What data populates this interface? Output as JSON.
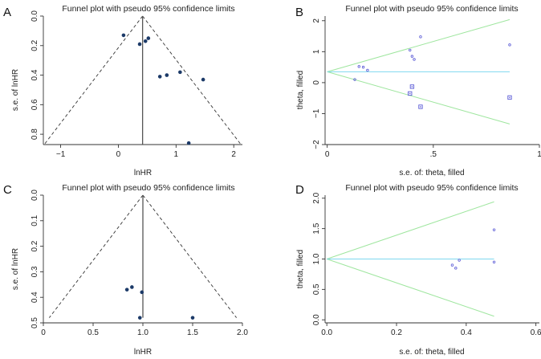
{
  "colors": {
    "point": "#1c3a68",
    "funnel_dash": "#333333",
    "center_line": "#555555",
    "pseudo_limits": "#9fe69f",
    "filled_line": "#7fd8ef",
    "filled_marker": "#5b5bd6",
    "axis": "#333333"
  },
  "chart_data": [
    {
      "panel": "A",
      "type": "scatter",
      "variant": "funnel",
      "title": "Funnel plot with pseudo 95% confidence limits",
      "xlabel": "lnHR",
      "ylabel": "s.e. of lnHR",
      "xlim": [
        -1.3,
        2.15
      ],
      "ylim": [
        0.0,
        0.87
      ],
      "y_reversed": true,
      "xticks": [
        -1,
        0,
        1,
        2
      ],
      "xtick_labels": [
        "−1",
        "0",
        "1",
        "2"
      ],
      "yticks": [
        0,
        0.2,
        0.4,
        0.6,
        0.8
      ],
      "ytick_labels": [
        "0.0",
        "0.2",
        "0.4",
        "0.6",
        "0.8"
      ],
      "pooled_estimate": 0.42,
      "funnel_max_se": 0.87,
      "points": [
        {
          "x": 0.09,
          "y": 0.13
        },
        {
          "x": 0.37,
          "y": 0.19
        },
        {
          "x": 0.47,
          "y": 0.17
        },
        {
          "x": 0.52,
          "y": 0.15
        },
        {
          "x": 0.72,
          "y": 0.41
        },
        {
          "x": 0.84,
          "y": 0.4
        },
        {
          "x": 1.07,
          "y": 0.38
        },
        {
          "x": 1.47,
          "y": 0.43
        },
        {
          "x": 1.22,
          "y": 0.86
        }
      ]
    },
    {
      "panel": "B",
      "type": "scatter",
      "variant": "filled",
      "title": "Funnel plot with pseudo 95% confidence limits",
      "xlabel": "s.e. of: theta, filled",
      "ylabel": "theta, filled",
      "xlim": [
        -0.01,
        1.0
      ],
      "ylim": [
        -2.0,
        2.15
      ],
      "xticks": [
        0,
        0.5,
        1
      ],
      "xtick_labels": [
        "0",
        ".5",
        "1"
      ],
      "yticks": [
        -2,
        -1,
        0,
        1,
        2
      ],
      "ytick_labels": [
        "−2",
        "−1",
        "0",
        "1",
        "2"
      ],
      "pooled_estimate": 0.35,
      "limit_x_max": 0.86,
      "observed": [
        {
          "x": 0.13,
          "y": 0.1
        },
        {
          "x": 0.15,
          "y": 0.52
        },
        {
          "x": 0.17,
          "y": 0.5
        },
        {
          "x": 0.19,
          "y": 0.4
        },
        {
          "x": 0.39,
          "y": 1.05
        },
        {
          "x": 0.4,
          "y": 0.85
        },
        {
          "x": 0.41,
          "y": 0.75
        },
        {
          "x": 0.44,
          "y": 1.48
        },
        {
          "x": 0.86,
          "y": 1.22
        }
      ],
      "filled": [
        {
          "x": 0.39,
          "y": -0.35
        },
        {
          "x": 0.4,
          "y": -0.13
        },
        {
          "x": 0.44,
          "y": -0.78
        },
        {
          "x": 0.86,
          "y": -0.48
        }
      ]
    },
    {
      "panel": "C",
      "type": "scatter",
      "variant": "funnel",
      "title": "Funnel plot with pseudo 95% confidence limits",
      "xlabel": "lnHR",
      "ylabel": "s.e. of lnHR",
      "xlim": [
        0.0,
        2.0
      ],
      "ylim": [
        0.0,
        0.5
      ],
      "y_reversed": true,
      "xticks": [
        0,
        0.5,
        1,
        1.5,
        2
      ],
      "xtick_labels": [
        "0",
        "0.5",
        "1.0",
        "1.5",
        "2.0"
      ],
      "yticks": [
        0,
        0.1,
        0.2,
        0.3,
        0.4,
        0.5
      ],
      "ytick_labels": [
        "0.0",
        "0.1",
        "0.2",
        "0.3",
        "0.4",
        "0.5"
      ],
      "pooled_estimate": 1.0,
      "funnel_max_se": 0.48,
      "points": [
        {
          "x": 0.84,
          "y": 0.37
        },
        {
          "x": 0.89,
          "y": 0.36
        },
        {
          "x": 0.99,
          "y": 0.38
        },
        {
          "x": 0.97,
          "y": 0.48
        },
        {
          "x": 1.5,
          "y": 0.48
        }
      ]
    },
    {
      "panel": "D",
      "type": "scatter",
      "variant": "filled",
      "title": "Funnel plot with pseudo 95% confidence limits",
      "xlabel": "s.e. of: theta, filled",
      "ylabel": "theta, filled",
      "xlim": [
        -0.005,
        0.61
      ],
      "ylim": [
        -0.05,
        2.05
      ],
      "xticks": [
        0,
        0.2,
        0.4,
        0.6
      ],
      "xtick_labels": [
        "0.0",
        "0.2",
        "0.4",
        "0.6"
      ],
      "yticks": [
        0,
        0.5,
        1,
        1.5,
        2
      ],
      "ytick_labels": [
        "0.0",
        "0.5",
        "1.0",
        "1.5",
        "2.0"
      ],
      "pooled_estimate": 1.0,
      "limit_x_max": 0.48,
      "observed": [
        {
          "x": 0.36,
          "y": 0.9
        },
        {
          "x": 0.37,
          "y": 0.85
        },
        {
          "x": 0.38,
          "y": 0.98
        },
        {
          "x": 0.48,
          "y": 1.48
        },
        {
          "x": 0.48,
          "y": 0.95
        }
      ],
      "filled": []
    }
  ]
}
